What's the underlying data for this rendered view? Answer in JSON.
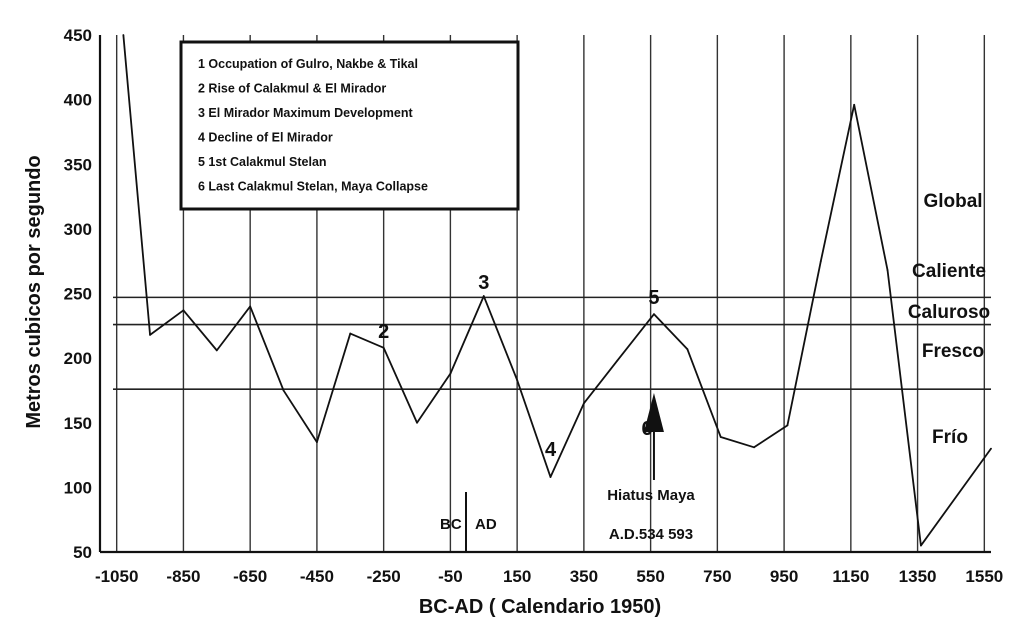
{
  "chart_data": {
    "type": "line",
    "xlabel": "BC-AD ( Calendario 1950)",
    "ylabel": "Metros cubicos por segundo",
    "xlim": [
      -1100,
      1570
    ],
    "ylim": [
      50,
      450
    ],
    "x_ticks": [
      "-1050",
      "-850",
      "-650",
      "-450",
      "-250",
      "-50",
      "150",
      "350",
      "550",
      "750",
      "950",
      "1150",
      "1350",
      "1550"
    ],
    "y_ticks": [
      "450",
      "400",
      "350",
      "300",
      "250",
      "200",
      "150",
      "100",
      "50"
    ],
    "series": [
      {
        "x": [
          -1030,
          -950,
          -850,
          -750,
          -650,
          -550,
          -450,
          -350,
          -250,
          -150,
          -50,
          50,
          150,
          250,
          350,
          450,
          560,
          660,
          760,
          860,
          960,
          1060,
          1160,
          1260,
          1360,
          1570
        ],
        "y": [
          450,
          218,
          237,
          206,
          240,
          175,
          135,
          219,
          208,
          150,
          188,
          248,
          183,
          108,
          165,
          198,
          234,
          207,
          139,
          131,
          148,
          275,
          396,
          268,
          55,
          130
        ]
      }
    ],
    "reference_lines": [
      {
        "y": 247
      },
      {
        "y": 226
      },
      {
        "y": 176
      }
    ],
    "bands": [
      "Global",
      "Caliente",
      "Caluroso",
      "Fresco",
      "Frío"
    ],
    "peak_labels": [
      {
        "label": "2",
        "x": -250
      },
      {
        "label": "3",
        "x": 50
      },
      {
        "label": "4",
        "x": 250
      },
      {
        "label": "5",
        "x": 560
      },
      {
        "label": "6",
        "x": 860
      }
    ],
    "annotations": {
      "bc": "BC",
      "ad": "AD",
      "hiatus": "Hiatus Maya",
      "hiatus_dates": "A.D.534  593"
    },
    "legend_items": [
      "1 Occupation of Gulro, Nakbe & Tikal",
      "2 Rise of Calakmul &  El Mirador",
      "3 El Mirador Maximum Development",
      "4 Decline of El Mirador",
      "5 1st Calakmul Stelan",
      "6 Last Calakmul Stelan, Maya Collapse"
    ],
    "legend_position": "top-left",
    "grid": {
      "vertical": true,
      "horizontal": false
    }
  }
}
